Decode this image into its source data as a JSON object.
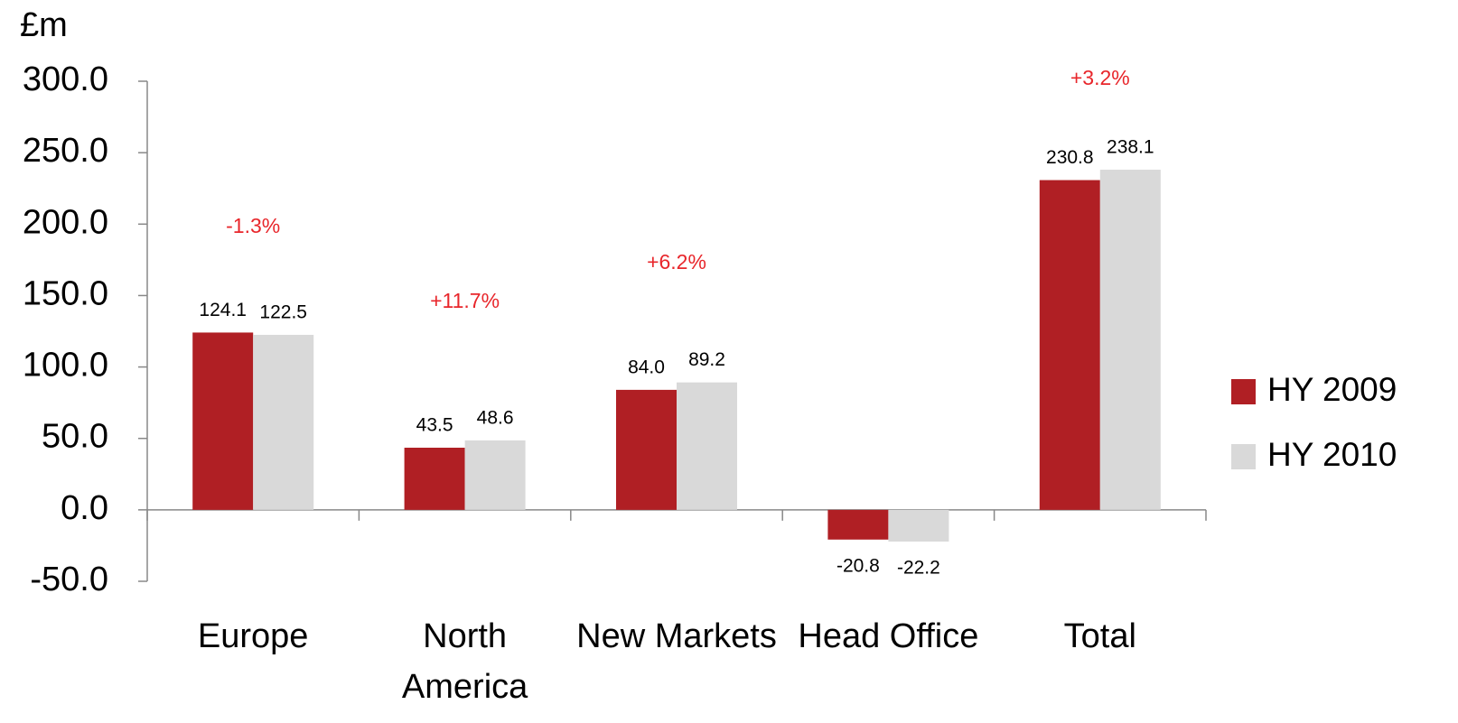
{
  "chart_data": {
    "type": "bar",
    "y_axis_label": "£m",
    "categories": [
      "Europe",
      "North America",
      "New Markets",
      "Head Office",
      "Total"
    ],
    "series": [
      {
        "name": "HY 2009",
        "color": "#b01f24",
        "values": [
          124.1,
          43.5,
          84.0,
          -20.8,
          230.8
        ],
        "value_labels": [
          "124.1",
          "43.5",
          "84.0",
          "-20.8",
          "230.8"
        ]
      },
      {
        "name": "HY 2010",
        "color": "#d9d9d9",
        "values": [
          122.5,
          48.6,
          89.2,
          -22.2,
          238.1
        ],
        "value_labels": [
          "122.5",
          "48.6",
          "89.2",
          "-22.2",
          "238.1"
        ]
      }
    ],
    "change_labels": [
      "-1.3%",
      "+11.7%",
      "+6.2%",
      null,
      "+3.2%"
    ],
    "ylim": [
      -50,
      300
    ],
    "yticks": [
      {
        "value": -50,
        "label": "-50.0"
      },
      {
        "value": 0,
        "label": "0.0"
      },
      {
        "value": 50,
        "label": "50.0"
      },
      {
        "value": 100,
        "label": "100.0"
      },
      {
        "value": 150,
        "label": "150.0"
      },
      {
        "value": 200,
        "label": "200.0"
      },
      {
        "value": 250,
        "label": "250.0"
      },
      {
        "value": 300,
        "label": "300.0"
      }
    ],
    "grid": false,
    "legend": "right"
  }
}
